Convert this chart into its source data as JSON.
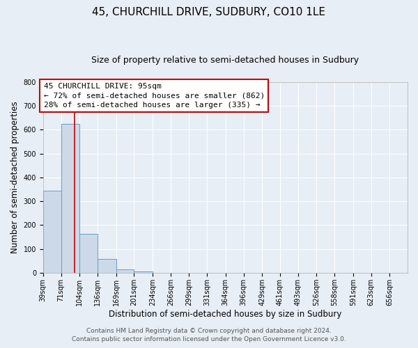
{
  "title": "45, CHURCHILL DRIVE, SUDBURY, CO10 1LE",
  "subtitle": "Size of property relative to semi-detached houses in Sudbury",
  "xlabel": "Distribution of semi-detached houses by size in Sudbury",
  "ylabel": "Number of semi-detached properties",
  "bin_edges": [
    39,
    71,
    104,
    136,
    169,
    201,
    234,
    266,
    299,
    331,
    364,
    396,
    429,
    461,
    493,
    526,
    558,
    591,
    623,
    656,
    688
  ],
  "bin_counts": [
    343,
    624,
    162,
    59,
    14,
    7,
    0,
    0,
    0,
    0,
    0,
    0,
    0,
    0,
    0,
    0,
    0,
    0,
    0,
    0
  ],
  "bar_color": "#ccd9e8",
  "bar_edge_color": "#6a9fc0",
  "property_size": 95,
  "vline_color": "#cc0000",
  "annotation_title": "45 CHURCHILL DRIVE: 95sqm",
  "annotation_line1": "← 72% of semi-detached houses are smaller (862)",
  "annotation_line2": "28% of semi-detached houses are larger (335) →",
  "annotation_box_facecolor": "#ffffff",
  "annotation_box_edgecolor": "#cc0000",
  "ylim": [
    0,
    800
  ],
  "yticks": [
    0,
    100,
    200,
    300,
    400,
    500,
    600,
    700,
    800
  ],
  "footer1": "Contains HM Land Registry data © Crown copyright and database right 2024.",
  "footer2": "Contains public sector information licensed under the Open Government Licence v3.0.",
  "background_color": "#e8eef5",
  "plot_background": "#e8eef5",
  "grid_color": "#ffffff",
  "title_fontsize": 11,
  "subtitle_fontsize": 9,
  "axis_label_fontsize": 8.5,
  "tick_fontsize": 7,
  "annotation_fontsize": 8,
  "footer_fontsize": 6.5
}
